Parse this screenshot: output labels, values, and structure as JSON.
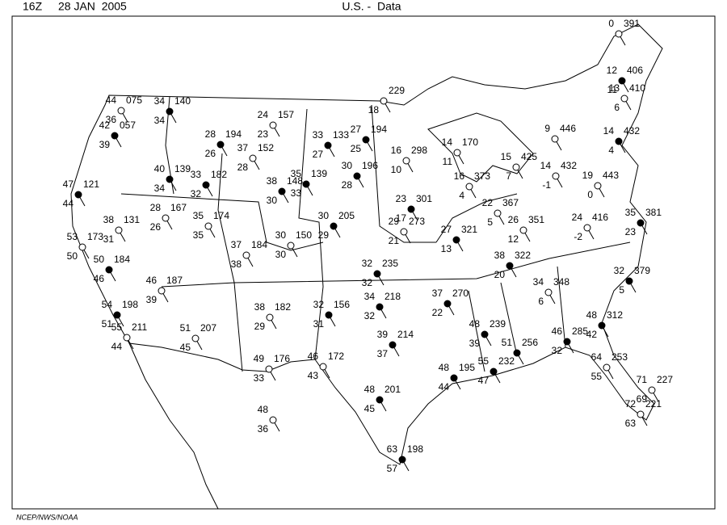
{
  "header": {
    "time": "16Z",
    "date": "28 JAN  2005",
    "title": "U.S. -  Data"
  },
  "footer": "NCEP/NWS/NOAA",
  "stations": [
    {
      "temp": "0",
      "pressure": "391"
    },
    {
      "temp": "12",
      "dew": "11",
      "pressure": "406"
    },
    {
      "temp": "13",
      "dew": "6",
      "pressure": "410"
    },
    {
      "temp": "14",
      "dew": "4",
      "pressure": "432"
    },
    {
      "temp": "9",
      "pressure": "446"
    },
    {
      "temp": "15",
      "dew": "7",
      "pressure": "425"
    },
    {
      "temp": "14",
      "dew": "-1",
      "pressure": "432"
    },
    {
      "temp": "19",
      "dew": "0",
      "pressure": "443"
    },
    {
      "temp": "35",
      "dew": "23",
      "pressure": "381"
    },
    {
      "temp": "24",
      "dew": "-2",
      "pressure": "416"
    },
    {
      "temp": "32",
      "dew": "5",
      "pressure": "379"
    },
    {
      "temp": "48",
      "dew": "42",
      "pressure": "312"
    },
    {
      "temp": "46",
      "dew": "32",
      "pressure": "285"
    },
    {
      "temp": "64",
      "dew": "55",
      "pressure": "253"
    },
    {
      "temp": "71",
      "dew": "69",
      "pressure": "227"
    },
    {
      "temp": "72",
      "dew": "63",
      "pressure": "221"
    },
    {
      "temp": "34",
      "dew": "6",
      "pressure": "348"
    },
    {
      "temp": "38",
      "dew": "20",
      "pressure": "322"
    },
    {
      "temp": "26",
      "dew": "12",
      "pressure": "351"
    },
    {
      "temp": "22",
      "dew": "5",
      "pressure": "367"
    },
    {
      "temp": "16",
      "dew": "4",
      "pressure": "373"
    },
    {
      "temp": "14",
      "dew": "11",
      "pressure": "170"
    },
    {
      "temp": "16",
      "dew": "10",
      "pressure": "298"
    },
    {
      "temp": "23",
      "dew": "17",
      "pressure": "301"
    },
    {
      "temp": "27",
      "dew": "13",
      "pressure": "321"
    },
    {
      "temp": "29",
      "dew": "21",
      "pressure": "273"
    },
    {
      "temp": "37",
      "dew": "22",
      "pressure": "270"
    },
    {
      "temp": "48",
      "dew": "39",
      "pressure": "239"
    },
    {
      "temp": "51",
      "pressure": "256"
    },
    {
      "temp": "55",
      "dew": "47",
      "pressure": "232"
    },
    {
      "temp": "48",
      "dew": "44",
      "pressure": "195"
    },
    {
      "temp": "39",
      "dew": "37",
      "pressure": "214"
    },
    {
      "temp": "34",
      "dew": "32",
      "pressure": "218"
    },
    {
      "temp": "32",
      "dew": "32",
      "pressure": "235"
    },
    {
      "temp": "30",
      "dew": "29",
      "pressure": "205"
    },
    {
      "temp": "30",
      "dew": "30",
      "pressure": "150"
    },
    {
      "temp": "37",
      "dew": "38",
      "pressure": "184"
    },
    {
      "temp": "49",
      "dew": "33",
      "pressure": "176"
    },
    {
      "temp": "46",
      "dew": "43",
      "pressure": "172"
    },
    {
      "temp": "32",
      "dew": "31",
      "pressure": "156"
    },
    {
      "temp": "38",
      "dew": "29",
      "pressure": "182"
    },
    {
      "temp": "51",
      "dew": "45",
      "pressure": "207"
    },
    {
      "temp": "48",
      "dew": "36"
    },
    {
      "temp": "63",
      "dew": "57",
      "pressure": "198"
    },
    {
      "temp": "48",
      "dew": "45",
      "pressure": "201"
    },
    {
      "temp": "30",
      "dew": "28",
      "pressure": "196"
    },
    {
      "temp": "35",
      "dew": "33",
      "pressure": "139"
    },
    {
      "temp": "38",
      "dew": "30",
      "pressure": "148"
    },
    {
      "temp": "33",
      "dew": "27",
      "pressure": "133"
    },
    {
      "temp": "27",
      "dew": "25",
      "pressure": "194"
    },
    {
      "dew": "18",
      "pressure": "229"
    },
    {
      "temp": "24",
      "dew": "23",
      "pressure": "157"
    },
    {
      "temp": "37",
      "dew": "28",
      "pressure": "152"
    },
    {
      "temp": "28",
      "dew": "26",
      "pressure": "194"
    },
    {
      "temp": "33",
      "dew": "32",
      "pressure": "182"
    },
    {
      "temp": "40",
      "dew": "34",
      "pressure": "139"
    },
    {
      "temp": "34",
      "dew": "34",
      "pressure": "140"
    },
    {
      "temp": "44",
      "dew": "36",
      "pressure": "075"
    },
    {
      "temp": "42",
      "dew": "39",
      "pressure": "057"
    },
    {
      "temp": "47",
      "dew": "44",
      "pressure": "121"
    },
    {
      "temp": "38",
      "dew": "31",
      "pressure": "131"
    },
    {
      "temp": "28",
      "dew": "26",
      "pressure": "167"
    },
    {
      "temp": "35",
      "dew": "35",
      "pressure": "174"
    },
    {
      "temp": "53",
      "dew": "50",
      "pressure": "173"
    },
    {
      "temp": "50",
      "dew": "46",
      "pressure": "184"
    },
    {
      "temp": "46",
      "dew": "39",
      "pressure": "187"
    },
    {
      "temp": "54",
      "dew": "51",
      "pressure": "198"
    },
    {
      "temp": "55",
      "dew": "44",
      "pressure": "211"
    }
  ]
}
